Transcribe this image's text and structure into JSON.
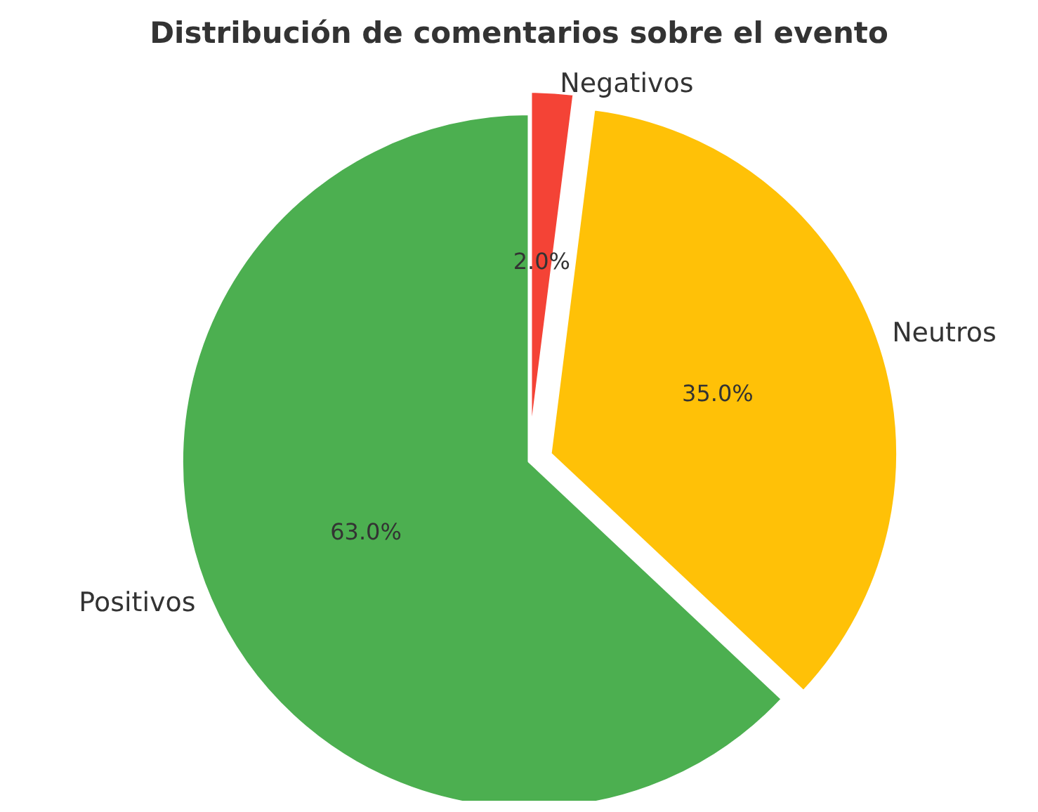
{
  "chart_data": {
    "type": "pie",
    "title": "Distribución de comentarios sobre el evento",
    "categories": [
      "Positivos",
      "Neutros",
      "Negativos"
    ],
    "values": [
      63,
      35,
      2
    ],
    "colors": [
      "#4caf50",
      "#ffc107",
      "#f44336"
    ],
    "value_labels": [
      "63.0%",
      "35.0%",
      "2.0%"
    ],
    "legend": false
  }
}
